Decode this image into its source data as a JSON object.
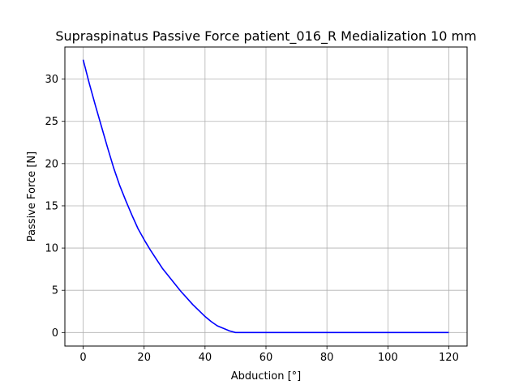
{
  "chart_data": {
    "type": "line",
    "title": "Supraspinatus Passive Force patient_016_R Medialization 10 mm",
    "xlabel": "Abduction [°]",
    "ylabel": "Passive Force [N]",
    "xlim": [
      -6,
      126
    ],
    "ylim": [
      -1.6,
      33.8
    ],
    "xticks": [
      0,
      20,
      40,
      60,
      80,
      100,
      120
    ],
    "yticks": [
      0,
      5,
      10,
      15,
      20,
      25,
      30
    ],
    "grid": true,
    "series": [
      {
        "color": "#0000ff",
        "x": [
          0,
          2,
          4,
          6,
          8,
          10,
          12,
          14,
          16,
          18,
          20,
          22,
          24,
          26,
          28,
          30,
          32,
          34,
          36,
          38,
          40,
          42,
          44,
          46,
          48,
          50,
          52,
          60,
          80,
          100,
          120
        ],
        "y": [
          32.3,
          29.5,
          26.9,
          24.4,
          21.9,
          19.5,
          17.4,
          15.6,
          13.9,
          12.3,
          11.0,
          9.8,
          8.7,
          7.6,
          6.7,
          5.8,
          4.9,
          4.1,
          3.3,
          2.6,
          1.9,
          1.3,
          0.8,
          0.5,
          0.2,
          0.0,
          0.0,
          0.0,
          0.0,
          0.0,
          0.0
        ]
      }
    ]
  }
}
